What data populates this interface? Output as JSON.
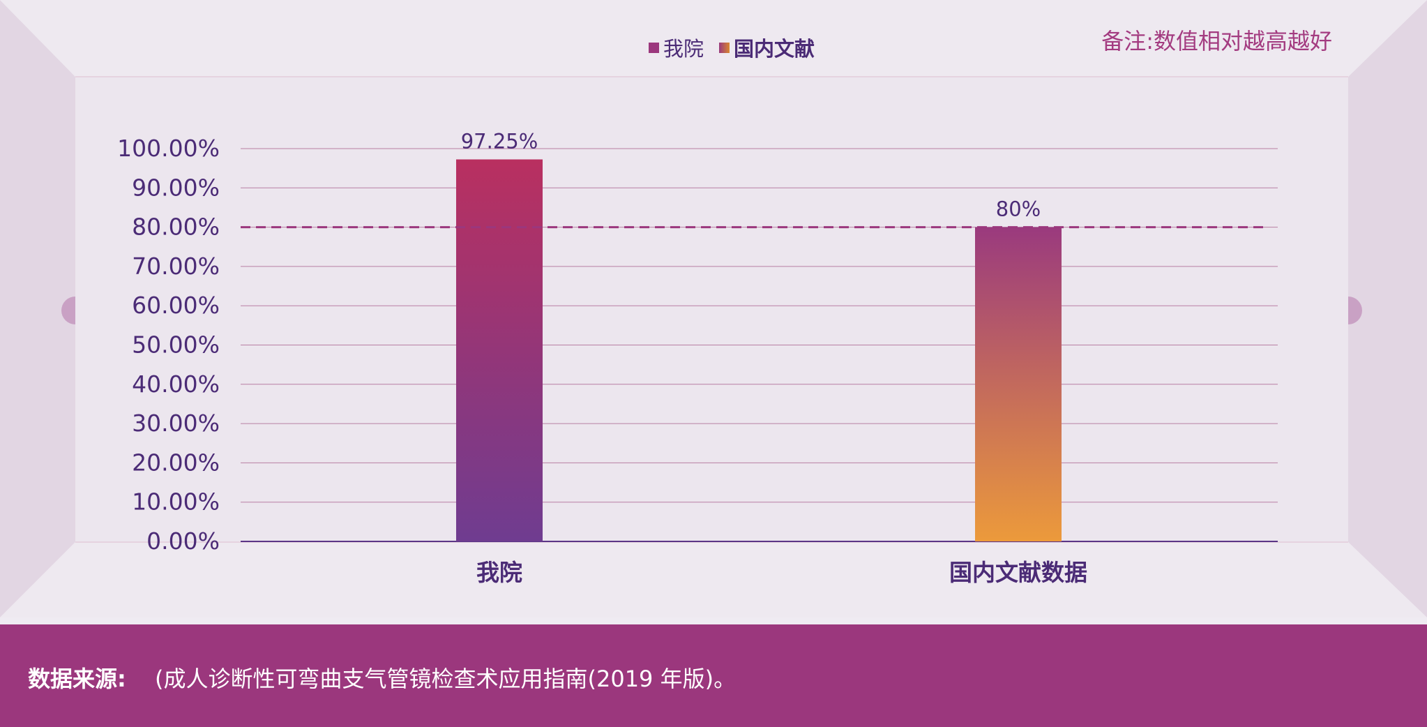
{
  "note": "备注:数值相对越高越好",
  "legend": [
    {
      "label": "我院",
      "bold": false,
      "color": "#9b377d"
    },
    {
      "label": "国内文献",
      "bold": true,
      "color": "#d9862f"
    }
  ],
  "footer": {
    "label": "数据来源:",
    "source": "(成人诊断性可弯曲支气管镜检查术应用指南(2019 年版)。"
  },
  "colors": {
    "accent": "#9b377d",
    "axis_text": "#4b2b76",
    "grid": "#b87fa3",
    "bar1_top": "#b93060",
    "bar1_bottom": "#6f3c90",
    "bar2_top": "#9a3a7e",
    "bar2_bottom": "#ec9a3b"
  },
  "chart_data": {
    "type": "bar",
    "categories": [
      "我院",
      "国内文献数据"
    ],
    "values": [
      97.25,
      80
    ],
    "value_labels": [
      "97.25%",
      "80%"
    ],
    "ylim": [
      0,
      100
    ],
    "yticks": [
      "0.00%",
      "10.00%",
      "20.00%",
      "30.00%",
      "40.00%",
      "50.00%",
      "60.00%",
      "70.00%",
      "80.00%",
      "90.00%",
      "100.00%"
    ],
    "reference_line": 80,
    "grid": true,
    "legend_position": "top-center"
  }
}
